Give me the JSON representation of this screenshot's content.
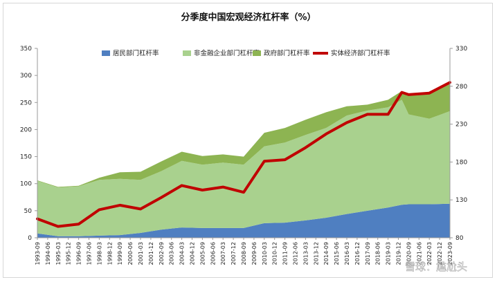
{
  "colors": {
    "household": "#4f7fc1",
    "corporate": "#a9d18e",
    "government": "#8db452",
    "real_economy": "#c00000"
  },
  "chart_data": {
    "type": "area",
    "title": "分季度中国宏观经济杠杆率（%）",
    "y_left": {
      "range": [
        0,
        350
      ],
      "ticks": [
        "0",
        "50",
        "100",
        "150",
        "200",
        "250",
        "300",
        "350"
      ]
    },
    "y_right": {
      "range": [
        80,
        330
      ],
      "ticks": [
        "80",
        "130",
        "180",
        "230",
        "280",
        "330"
      ]
    },
    "x_tick_labels": [
      "1993-09",
      "1994-06",
      "1995-03",
      "1995-12",
      "1996-09",
      "1997-06",
      "1998-03",
      "1998-12",
      "1999-09",
      "2000-06",
      "2001-03",
      "2001-12",
      "2002-09",
      "2003-06",
      "2004-03",
      "2004-12",
      "2005-09",
      "2006-06",
      "2007-03",
      "2007-12",
      "2008-09",
      "2009-06",
      "2010-03",
      "2010-12",
      "2011-09",
      "2012-06",
      "2013-03",
      "2013-12",
      "2014-09",
      "2015-06",
      "2016-03",
      "2016-12",
      "2017-09",
      "2018-06",
      "2019-03",
      "2019-12",
      "2020-09",
      "2021-06",
      "2022-03",
      "2022-12",
      "2023-09"
    ],
    "legend_position": "top",
    "x": [
      "1993-09",
      "1995-03",
      "1996-09",
      "1998-03",
      "1999-09",
      "2001-03",
      "2002-09",
      "2004-03",
      "2005-09",
      "2007-03",
      "2008-09",
      "2010-03",
      "2011-09",
      "2013-03",
      "2014-09",
      "2016-03",
      "2017-09",
      "2019-03",
      "2020-03",
      "2020-09",
      "2022-03",
      "2023-09"
    ],
    "series": [
      {
        "name": "居民部门杠杆率",
        "axis": "left",
        "values": [
          8,
          3,
          3,
          4,
          5,
          9,
          15,
          19,
          18,
          18,
          18,
          27,
          28,
          32,
          37,
          44,
          50,
          56,
          61,
          62,
          62,
          63
        ]
      },
      {
        "name": "非金融企业部门杠杆率",
        "axis": "left",
        "values": [
          97,
          90,
          92,
          103,
          104,
          98,
          108,
          123,
          117,
          121,
          117,
          142,
          148,
          158,
          166,
          182,
          185,
          185,
          194,
          166,
          158,
          171
        ]
      },
      {
        "name": "政府部门杠杆率",
        "axis": "left",
        "values": [
          1,
          1,
          1,
          4,
          12,
          15,
          18,
          17,
          16,
          15,
          15,
          25,
          27,
          28,
          29,
          17,
          11,
          14,
          16,
          35,
          46,
          50
        ]
      },
      {
        "name": "实体经济部门杠杆率",
        "axis": "right",
        "values": [
          105,
          95,
          98,
          117,
          123,
          118,
          133,
          149,
          143,
          147,
          140,
          181,
          183,
          199,
          217,
          232,
          243,
          243,
          272,
          269,
          271,
          285
        ]
      }
    ]
  }
}
